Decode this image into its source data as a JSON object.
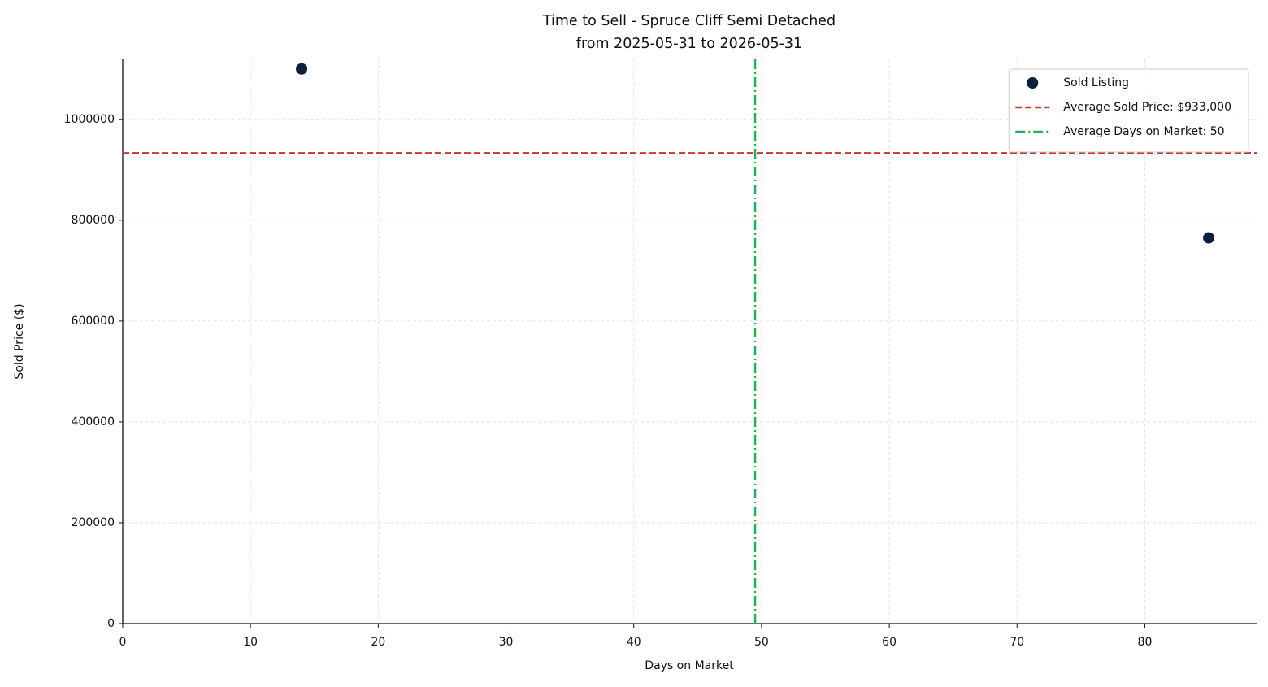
{
  "chart_data": {
    "type": "scatter",
    "title": "Time to Sell - Spruce Cliff Semi Detached",
    "subtitle": "from 2025-05-31 to 2026-05-31",
    "x_label": "Days on Market",
    "y_label": "Sold Price ($)",
    "series": [
      {
        "name": "Sold Listing",
        "color": "#0b1f3a",
        "x": [
          14,
          85
        ],
        "values": [
          1100000,
          765000
        ]
      }
    ],
    "reference_lines": [
      {
        "name": "Average Sold Price: $933,000",
        "axis": "y",
        "value": 933000,
        "color": "#c0392b",
        "style": "dashed"
      },
      {
        "name": "Average Days on Market: 50",
        "axis": "x",
        "value": 49.5,
        "color": "#27ae60",
        "style": "dashdot"
      }
    ],
    "xlim": [
      0,
      88.75
    ],
    "ylim": [
      0,
      1119000
    ],
    "xticks": [
      0,
      10,
      20,
      30,
      40,
      50,
      60,
      70,
      80
    ],
    "yticks": [
      0,
      200000,
      400000,
      600000,
      800000,
      1000000
    ],
    "grid": true,
    "legend": "upper-right"
  }
}
